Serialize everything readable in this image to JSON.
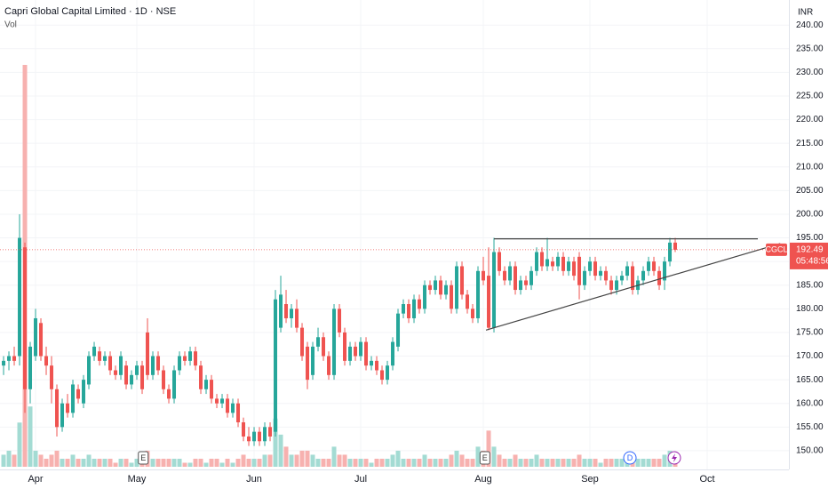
{
  "chart_data": {
    "type": "candlestick",
    "title": "Capri Global Capital Limited · 1D · NSE",
    "volume_label": "Vol",
    "currency": "INR",
    "symbol": "CGCL",
    "countdown": "05:48:56",
    "up_color": "#26a69a",
    "down_color": "#ef5350",
    "up_volume_color": "#a3dbd3",
    "down_volume_color": "#f7b1af",
    "grid": true,
    "xlim": [
      -0.67,
      147.33
    ],
    "ylim": [
      146.6,
      245.3
    ],
    "volume_lim": [
      0,
      100
    ],
    "xticks": [
      {
        "value": 6,
        "label": "Apr"
      },
      {
        "value": 25,
        "label": "May"
      },
      {
        "value": 47,
        "label": "Jun"
      },
      {
        "value": 67,
        "label": "Jul"
      },
      {
        "value": 90,
        "label": "Aug"
      },
      {
        "value": 110,
        "label": "Sep"
      },
      {
        "value": 132,
        "label": "Oct"
      }
    ],
    "yticks": [
      {
        "value": 150,
        "label": "150.00"
      },
      {
        "value": 155,
        "label": "155.00"
      },
      {
        "value": 160,
        "label": "160.00"
      },
      {
        "value": 165,
        "label": "165.00"
      },
      {
        "value": 170,
        "label": "170.00"
      },
      {
        "value": 175,
        "label": "175.00"
      },
      {
        "value": 180,
        "label": "180.00"
      },
      {
        "value": 185,
        "label": "185.00"
      },
      {
        "value": 190,
        "label": "190.00"
      },
      {
        "value": 195,
        "label": "195.00"
      },
      {
        "value": 200,
        "label": "200.00"
      },
      {
        "value": 205,
        "label": "205.00"
      },
      {
        "value": 210,
        "label": "210.00"
      },
      {
        "value": 215,
        "label": "215.00"
      },
      {
        "value": 220,
        "label": "220.00"
      },
      {
        "value": 225,
        "label": "225.00"
      },
      {
        "value": 230,
        "label": "230.00"
      },
      {
        "value": 235,
        "label": "235.00"
      },
      {
        "value": 240,
        "label": "240.00"
      }
    ],
    "ohlc": [
      [
        168,
        170,
        166,
        169
      ],
      [
        169,
        171,
        167,
        170
      ],
      [
        170,
        172,
        168,
        169
      ],
      [
        170,
        200,
        168,
        195
      ],
      [
        193,
        194,
        158,
        163
      ],
      [
        163,
        173,
        160,
        172
      ],
      [
        170,
        180,
        169,
        178
      ],
      [
        177,
        178,
        169,
        170
      ],
      [
        170,
        172,
        166,
        168
      ],
      [
        168,
        170,
        160,
        163
      ],
      [
        163,
        164,
        153,
        155
      ],
      [
        155,
        161,
        154,
        160
      ],
      [
        160,
        162,
        157,
        158
      ],
      [
        158,
        165,
        157,
        164
      ],
      [
        163,
        164,
        160,
        161
      ],
      [
        160,
        166,
        159,
        165
      ],
      [
        164,
        171,
        163,
        170
      ],
      [
        170,
        173,
        169,
        172
      ],
      [
        171,
        172,
        168,
        169
      ],
      [
        169,
        171,
        168,
        170
      ],
      [
        170,
        171,
        166,
        167
      ],
      [
        167,
        168,
        165,
        166
      ],
      [
        166,
        171,
        165,
        170
      ],
      [
        168,
        169,
        163,
        164
      ],
      [
        164,
        167,
        163,
        166
      ],
      [
        166,
        169,
        165,
        168
      ],
      [
        168,
        169,
        162,
        163
      ],
      [
        175,
        178,
        165,
        166
      ],
      [
        166,
        171,
        165,
        170
      ],
      [
        170,
        171,
        166,
        167
      ],
      [
        167,
        168,
        162,
        163
      ],
      [
        163,
        164,
        160,
        161
      ],
      [
        161,
        168,
        160,
        167
      ],
      [
        167,
        171,
        166,
        170
      ],
      [
        170,
        171,
        168,
        169
      ],
      [
        169,
        172,
        168,
        171
      ],
      [
        171,
        172,
        167,
        168
      ],
      [
        168,
        169,
        162,
        163
      ],
      [
        163,
        166,
        162,
        165
      ],
      [
        165,
        166,
        160,
        161
      ],
      [
        161,
        162,
        159,
        160
      ],
      [
        160,
        162,
        159,
        161
      ],
      [
        161,
        162,
        157,
        158
      ],
      [
        158,
        161,
        157,
        160
      ],
      [
        160,
        161,
        155,
        156
      ],
      [
        156,
        157,
        152,
        153
      ],
      [
        153,
        155,
        151,
        152
      ],
      [
        152,
        155,
        151,
        154
      ],
      [
        154,
        155,
        151,
        152
      ],
      [
        152,
        156,
        151,
        155
      ],
      [
        155,
        156,
        152,
        153
      ],
      [
        154,
        184,
        153,
        182
      ],
      [
        176,
        187,
        175,
        183
      ],
      [
        181,
        184,
        177,
        178
      ],
      [
        178,
        181,
        176,
        180
      ],
      [
        180,
        182,
        175,
        176
      ],
      [
        176,
        177,
        169,
        170
      ],
      [
        172,
        173,
        163,
        165
      ],
      [
        166,
        173,
        165,
        172
      ],
      [
        172,
        176,
        171,
        174
      ],
      [
        174,
        175,
        169,
        170
      ],
      [
        170,
        171,
        165,
        166
      ],
      [
        166,
        181,
        165,
        180
      ],
      [
        180,
        181,
        174,
        175
      ],
      [
        175,
        176,
        168,
        169
      ],
      [
        169,
        173,
        168,
        172
      ],
      [
        172,
        173,
        169,
        170
      ],
      [
        170,
        174,
        169,
        173
      ],
      [
        173,
        174,
        167,
        168
      ],
      [
        168,
        170,
        167,
        169
      ],
      [
        169,
        170,
        166,
        167
      ],
      [
        167,
        168,
        164,
        165
      ],
      [
        165,
        169,
        164,
        168
      ],
      [
        168,
        174,
        167,
        173
      ],
      [
        172,
        180,
        171,
        179
      ],
      [
        179,
        182,
        178,
        181
      ],
      [
        181,
        182,
        177,
        178
      ],
      [
        178,
        183,
        177,
        182
      ],
      [
        182,
        183,
        179,
        180
      ],
      [
        180,
        186,
        179,
        185
      ],
      [
        185,
        186,
        183,
        184
      ],
      [
        184,
        187,
        183,
        186
      ],
      [
        186,
        187,
        182,
        183
      ],
      [
        183,
        186,
        182,
        185
      ],
      [
        185,
        186,
        179,
        180
      ],
      [
        180,
        190,
        179,
        189
      ],
      [
        189,
        190,
        182,
        183
      ],
      [
        183,
        184,
        179,
        180
      ],
      [
        180,
        181,
        177,
        178
      ],
      [
        178,
        189,
        177,
        188
      ],
      [
        188,
        191,
        185,
        186
      ],
      [
        187,
        193,
        175.5,
        176
      ],
      [
        176,
        195,
        175,
        192
      ],
      [
        192,
        193,
        187,
        188
      ],
      [
        188,
        189,
        185,
        186
      ],
      [
        186,
        190,
        185,
        189
      ],
      [
        189,
        190,
        183,
        184
      ],
      [
        184,
        187,
        183,
        186
      ],
      [
        186,
        187,
        184,
        185
      ],
      [
        185,
        189,
        184,
        188
      ],
      [
        188,
        193,
        187,
        192
      ],
      [
        192,
        193,
        188,
        189
      ],
      [
        189,
        195,
        188,
        190.5
      ],
      [
        190,
        191,
        188,
        189
      ],
      [
        189,
        192,
        188,
        191
      ],
      [
        191,
        192,
        187,
        188
      ],
      [
        188,
        191,
        187,
        190
      ],
      [
        190,
        191,
        186,
        187
      ],
      [
        191,
        192,
        182,
        185
      ],
      [
        185,
        189,
        184,
        188
      ],
      [
        188,
        191,
        187,
        190
      ],
      [
        190,
        191,
        186,
        187
      ],
      [
        187,
        189,
        186,
        188
      ],
      [
        188,
        189,
        185,
        186
      ],
      [
        186,
        187,
        183,
        184
      ],
      [
        184,
        187,
        183,
        186
      ],
      [
        186,
        188,
        185,
        187
      ],
      [
        187,
        190,
        186,
        189
      ],
      [
        189,
        190,
        183,
        184
      ],
      [
        184,
        187,
        183,
        186
      ],
      [
        186,
        189,
        185,
        188
      ],
      [
        188,
        191,
        187,
        190
      ],
      [
        190,
        191,
        187,
        188
      ],
      [
        188,
        189,
        184,
        185
      ],
      [
        186,
        191,
        184,
        190
      ],
      [
        190,
        195,
        189,
        194
      ],
      [
        194,
        195,
        192,
        192.49
      ]
    ],
    "volume": [
      3,
      4,
      3,
      11,
      100,
      15,
      4,
      3,
      2,
      3,
      4,
      2,
      2,
      3,
      2,
      2,
      3,
      2,
      2,
      2,
      2,
      1,
      2,
      2,
      1,
      2,
      2,
      4,
      2,
      2,
      2,
      2,
      2,
      2,
      1,
      1,
      2,
      2,
      1,
      2,
      2,
      1,
      2,
      1,
      2,
      3,
      2,
      2,
      2,
      3,
      3,
      12,
      8,
      5,
      3,
      3,
      4,
      4,
      3,
      2,
      2,
      2,
      5,
      3,
      3,
      2,
      2,
      2,
      2,
      1,
      2,
      2,
      2,
      3,
      4,
      2,
      2,
      2,
      2,
      3,
      2,
      2,
      2,
      2,
      3,
      4,
      3,
      2,
      2,
      5,
      4,
      9,
      5,
      3,
      2,
      2,
      3,
      2,
      2,
      2,
      3,
      2,
      2,
      2,
      2,
      2,
      2,
      2,
      3,
      2,
      2,
      2,
      1,
      2,
      2,
      2,
      2,
      2,
      3,
      2,
      2,
      2,
      2,
      2,
      3,
      4,
      3
    ],
    "trendlines": [
      {
        "x": [
          92,
          141.5
        ],
        "y": [
          194.8,
          194.8
        ]
      },
      {
        "x": [
          90.5,
          145.7
        ],
        "y": [
          175.5,
          193.8
        ]
      }
    ],
    "events": [
      {
        "label": "E",
        "x": 26.2
      },
      {
        "label": "E",
        "x": 90.3
      },
      {
        "label": "D",
        "x": 117.5
      }
    ]
  }
}
